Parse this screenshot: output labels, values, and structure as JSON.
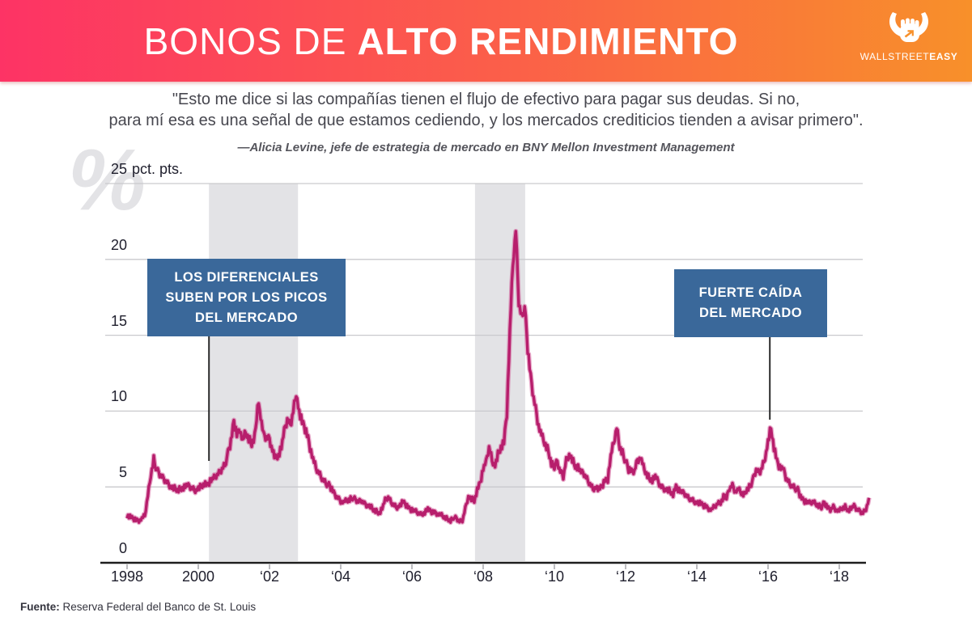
{
  "header": {
    "title_light": "BONOS DE",
    "title_bold": "ALTO RENDIMIENTO",
    "brand": {
      "name_regular": "WALLSTREET",
      "name_bold": "EASY"
    },
    "colors": {
      "gradient_left": "#fd3365",
      "gradient_right": "#f8902a"
    }
  },
  "quote": {
    "line1": "\"Esto me dice si las compañías tienen el flujo de efectivo para pagar sus deudas. Si no,",
    "line2": "para mí esa es una señal de que estamos cediendo, y los mercados crediticios tienden a avisar primero\".",
    "attribution": "—Alicia Levine, jefe de estrategia de mercado en BNY Mellon Investment Management"
  },
  "watermark": "%",
  "source": {
    "label": "Fuente:",
    "text": "Reserva Federal del Banco de St. Louis"
  },
  "chart_data": {
    "type": "line",
    "ylabel_unit": "pct. pts.",
    "ylim": [
      0,
      25
    ],
    "y_ticks": [
      0,
      5,
      10,
      15,
      20,
      25
    ],
    "x_ticks": [
      {
        "year": 1998,
        "label": "1998"
      },
      {
        "year": 2000,
        "label": "2000"
      },
      {
        "year": 2002,
        "label": "‘02"
      },
      {
        "year": 2004,
        "label": "‘04"
      },
      {
        "year": 2006,
        "label": "‘06"
      },
      {
        "year": 2008,
        "label": "‘08"
      },
      {
        "year": 2010,
        "label": "‘10"
      },
      {
        "year": 2012,
        "label": "‘12"
      },
      {
        "year": 2014,
        "label": "‘14"
      },
      {
        "year": 2016,
        "label": "‘16"
      },
      {
        "year": 2018,
        "label": "‘18"
      }
    ],
    "grid": true,
    "line_color": "#b71e6c",
    "line_halo_color": "rgba(203,72,139,0.45)",
    "band_color": "#e3e3e6",
    "recession_bands": [
      {
        "from": 2000.3,
        "to": 2002.8
      },
      {
        "from": 2007.77,
        "to": 2009.18
      }
    ],
    "annotations": [
      {
        "id": "left",
        "text_lines": [
          "LOS DIFERENCIALES",
          "SUBEN POR LOS PICOS",
          "DEL MERCADO"
        ],
        "points_to_year": 2000.3,
        "box_color": "#3a689a"
      },
      {
        "id": "right",
        "text_lines": [
          "FUERTE CAÍDA",
          "DEL MERCADO"
        ],
        "points_to_year": 2016.05,
        "box_color": "#3a689a"
      }
    ],
    "series": {
      "start_year": 1998,
      "interval": "monthly",
      "values": [
        3.1,
        3.0,
        2.9,
        2.8,
        2.8,
        2.9,
        3.1,
        4.4,
        5.8,
        6.9,
        6.1,
        5.8,
        5.6,
        5.4,
        5.2,
        5.0,
        4.9,
        4.8,
        4.9,
        5.0,
        5.1,
        5.0,
        4.9,
        4.8,
        4.9,
        5.0,
        5.2,
        5.1,
        5.4,
        5.5,
        5.7,
        5.9,
        6.2,
        6.5,
        7.2,
        7.9,
        9.3,
        8.4,
        8.9,
        8.0,
        8.6,
        8.2,
        7.9,
        8.4,
        10.4,
        9.7,
        8.4,
        8.3,
        8.2,
        7.5,
        6.9,
        7.1,
        7.6,
        8.6,
        9.4,
        9.0,
        10.0,
        11.3,
        9.9,
        9.2,
        8.8,
        8.2,
        7.3,
        6.6,
        6.1,
        5.8,
        5.5,
        5.3,
        5.1,
        4.8,
        4.5,
        4.3,
        4.1,
        4.0,
        4.1,
        4.2,
        4.3,
        4.1,
        4.0,
        4.1,
        3.9,
        3.8,
        3.7,
        3.5,
        3.4,
        3.3,
        3.6,
        4.1,
        4.3,
        4.0,
        3.8,
        3.7,
        3.8,
        4.0,
        3.8,
        3.6,
        3.5,
        3.4,
        3.3,
        3.2,
        3.3,
        3.5,
        3.4,
        3.3,
        3.3,
        3.2,
        3.1,
        3.0,
        2.9,
        2.8,
        3.0,
        2.9,
        2.7,
        2.8,
        3.6,
        4.4,
        4.2,
        4.1,
        4.8,
        5.3,
        6.2,
        6.6,
        7.6,
        6.8,
        6.4,
        7.1,
        7.6,
        7.9,
        9.9,
        15.2,
        19.6,
        21.9,
        17.2,
        16.2,
        16.9,
        14.0,
        12.2,
        10.9,
        9.8,
        8.8,
        8.2,
        7.8,
        7.4,
        6.6,
        6.4,
        6.6,
        6.0,
        5.7,
        6.8,
        7.2,
        6.8,
        6.4,
        6.3,
        5.9,
        5.8,
        5.5,
        5.2,
        4.9,
        5.0,
        4.8,
        5.0,
        5.4,
        5.5,
        7.0,
        7.9,
        8.9,
        7.7,
        7.3,
        6.7,
        6.1,
        6.0,
        6.1,
        6.8,
        7.0,
        6.3,
        5.9,
        5.6,
        5.5,
        5.7,
        5.3,
        5.0,
        4.9,
        4.8,
        4.7,
        4.5,
        5.0,
        4.8,
        4.6,
        4.5,
        4.3,
        4.2,
        4.1,
        4.0,
        3.9,
        3.8,
        3.7,
        3.6,
        3.5,
        3.7,
        3.9,
        4.0,
        4.4,
        4.2,
        4.9,
        5.1,
        4.7,
        4.8,
        4.6,
        4.5,
        4.9,
        5.1,
        5.5,
        6.1,
        5.9,
        6.3,
        7.0,
        8.0,
        8.9,
        7.6,
        6.7,
        6.3,
        6.2,
        5.6,
        5.3,
        5.1,
        5.0,
        4.8,
        4.3,
        4.1,
        4.0,
        3.9,
        4.0,
        3.9,
        3.8,
        3.7,
        3.9,
        3.6,
        3.5,
        3.7,
        3.5,
        3.4,
        3.6,
        3.7,
        3.5,
        3.6,
        3.7,
        3.5,
        3.4,
        3.3,
        3.6,
        4.2
      ]
    }
  }
}
